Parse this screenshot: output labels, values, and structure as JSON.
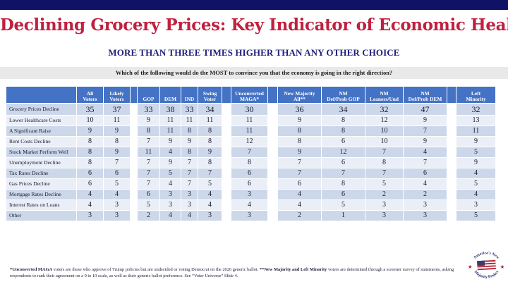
{
  "header": {
    "title": "Declining Grocery Prices: Key Indicator of Economic Health",
    "subtitle": "MORE THAN THREE TIMES HIGHER THAN ANY OTHER CHOICE",
    "question": "Which of the following would do the MOST to convince you that the economy is going in the right direction?"
  },
  "table": {
    "columns": [
      "All\nVoters",
      "Likely\nVoters",
      "GOP",
      "DEM",
      "IND",
      "Swing\nVoter",
      "Unconverted\nMAGA*",
      "New Majority\nAll**",
      "NM\nDef/Prob GOP",
      "NM\nLeaners/Und",
      "NM\nDef/Prob DEM",
      "Left\nMinority"
    ],
    "rows": [
      {
        "label": "Grocery Prices Decline",
        "values": [
          35,
          37,
          33,
          38,
          33,
          34,
          30,
          36,
          34,
          32,
          47,
          32
        ],
        "emphasis": true
      },
      {
        "label": "Lower Healthcare Costs",
        "values": [
          10,
          11,
          9,
          11,
          11,
          11,
          11,
          9,
          8,
          12,
          9,
          13
        ],
        "emphasis": false
      },
      {
        "label": "A Significant Raise",
        "values": [
          9,
          9,
          8,
          11,
          8,
          8,
          11,
          8,
          8,
          10,
          7,
          11
        ],
        "emphasis": false
      },
      {
        "label": "Rent Costs Decline",
        "values": [
          8,
          8,
          7,
          9,
          9,
          8,
          12,
          8,
          6,
          10,
          9,
          9
        ],
        "emphasis": false
      },
      {
        "label": "Stock Market Perform Well",
        "values": [
          8,
          9,
          11,
          4,
          8,
          9,
          7,
          9,
          12,
          7,
          4,
          5
        ],
        "emphasis": false
      },
      {
        "label": "Unemployment Decline",
        "values": [
          8,
          7,
          7,
          9,
          7,
          8,
          8,
          7,
          6,
          8,
          7,
          9
        ],
        "emphasis": false
      },
      {
        "label": "Tax Rates Decline",
        "values": [
          6,
          6,
          7,
          5,
          7,
          7,
          6,
          7,
          7,
          7,
          6,
          4
        ],
        "emphasis": false
      },
      {
        "label": "Gas Prices Decline",
        "values": [
          6,
          5,
          7,
          4,
          7,
          5,
          6,
          6,
          8,
          5,
          4,
          5
        ],
        "emphasis": false
      },
      {
        "label": "Mortgage Rates Decline",
        "values": [
          4,
          4,
          6,
          3,
          3,
          4,
          3,
          4,
          6,
          2,
          2,
          4
        ],
        "emphasis": false
      },
      {
        "label": "Interest Rates on Loans",
        "values": [
          4,
          3,
          5,
          3,
          3,
          4,
          4,
          4,
          5,
          3,
          3,
          3
        ],
        "emphasis": false
      },
      {
        "label": "Other",
        "values": [
          3,
          3,
          2,
          4,
          4,
          3,
          3,
          2,
          1,
          3,
          3,
          5
        ],
        "emphasis": false
      }
    ]
  },
  "footnote": {
    "p1_bold": "*Unconverted MAGA",
    "p1": " voters are those who approve of Trump policies but are undecided or voting Democrat on the 2026 generic ballot. ",
    "p2_bold": "**New Majority and Left Minority",
    "p2": " voters are determined through a screener survey of statements, asking respondents to rank their agreement on a 0 to 10 scale, as well as their generic ballot preference. See “Voter Universe” Slide 4."
  },
  "logo": {
    "arc_top": "America's New",
    "arc_bottom": "Majority Project"
  },
  "colors": {
    "top_bar_navy": "#101266",
    "title_red": "#C0203F",
    "subtitle_navy": "#21217E",
    "question_bar_gray": "#E9E9E9",
    "header_blue": "#4472C4",
    "row_band_dark": "#CDD7EA",
    "row_band_light": "#EAEEF7",
    "flag_red": "#B22234",
    "flag_blue": "#3C3B6E"
  }
}
